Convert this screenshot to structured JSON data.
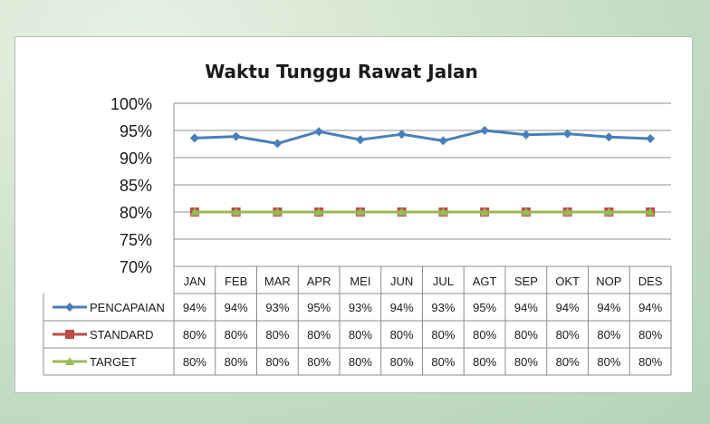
{
  "chart_data": {
    "type": "line",
    "title": "Waktu Tunggu Rawat Jalan",
    "categories": [
      "JAN",
      "FEB",
      "MAR",
      "APR",
      "MEI",
      "JUN",
      "JUL",
      "AGT",
      "SEP",
      "OKT",
      "NOP",
      "DES"
    ],
    "y_ticks": [
      "100%",
      "95%",
      "90%",
      "85%",
      "80%",
      "75%",
      "70%"
    ],
    "ylim": [
      70,
      100
    ],
    "grid": true,
    "legend": "data-table-left",
    "series": [
      {
        "name": "PENCAPAIAN",
        "color": "#4a7ebb",
        "marker": "diamond",
        "values": [
          93.6,
          93.9,
          92.6,
          94.8,
          93.3,
          94.3,
          93.1,
          95.0,
          94.2,
          94.4,
          93.8,
          93.5
        ],
        "labels": [
          "94%",
          "94%",
          "93%",
          "95%",
          "93%",
          "94%",
          "93%",
          "95%",
          "94%",
          "94%",
          "94%",
          "94%"
        ]
      },
      {
        "name": "STANDARD",
        "color": "#be4b48",
        "marker": "square",
        "values": [
          80,
          80,
          80,
          80,
          80,
          80,
          80,
          80,
          80,
          80,
          80,
          80
        ],
        "labels": [
          "80%",
          "80%",
          "80%",
          "80%",
          "80%",
          "80%",
          "80%",
          "80%",
          "80%",
          "80%",
          "80%",
          "80%"
        ]
      },
      {
        "name": "TARGET",
        "color": "#98b954",
        "marker": "triangle",
        "values": [
          80,
          80,
          80,
          80,
          80,
          80,
          80,
          80,
          80,
          80,
          80,
          80
        ],
        "labels": [
          "80%",
          "80%",
          "80%",
          "80%",
          "80%",
          "80%",
          "80%",
          "80%",
          "80%",
          "80%",
          "80%",
          "80%"
        ]
      }
    ]
  }
}
